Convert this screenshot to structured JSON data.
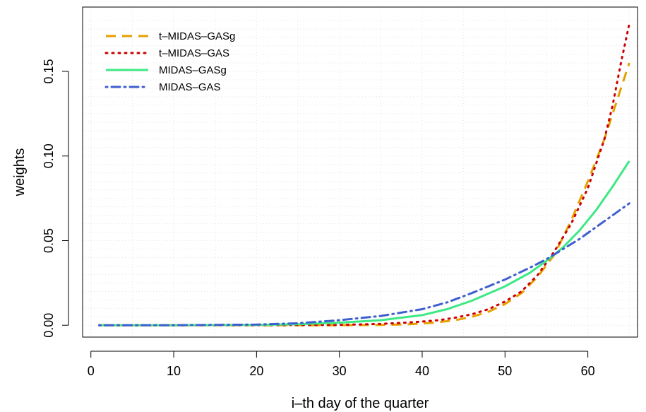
{
  "chart_data": {
    "type": "line",
    "title": "",
    "xlabel": "i–th day of the quarter",
    "ylabel": "weights",
    "xlim": [
      -1,
      66
    ],
    "ylim": [
      -0.007,
      0.188
    ],
    "xticks": [
      0,
      10,
      20,
      30,
      40,
      50,
      60
    ],
    "yticks": [
      0.0,
      0.05,
      0.1,
      0.15
    ],
    "ytick_labels": [
      "0.00",
      "0.05",
      "0.10",
      "0.15"
    ],
    "grid": true,
    "legend_position": "top-left",
    "series": [
      {
        "name": "t–MIDAS–GASg",
        "color": "#E69F00",
        "dash": "dashed",
        "points": [
          [
            1,
            0
          ],
          [
            10,
            0
          ],
          [
            20,
            0
          ],
          [
            30,
            0
          ],
          [
            35,
            0.0002
          ],
          [
            38,
            0.0005
          ],
          [
            40,
            0.001
          ],
          [
            42,
            0.0018
          ],
          [
            44,
            0.003
          ],
          [
            46,
            0.005
          ],
          [
            48,
            0.008
          ],
          [
            50,
            0.0125
          ],
          [
            52,
            0.019
          ],
          [
            54,
            0.029
          ],
          [
            56,
            0.042
          ],
          [
            58,
            0.062
          ],
          [
            60,
            0.085
          ],
          [
            62,
            0.11
          ],
          [
            64,
            0.14
          ],
          [
            65,
            0.155
          ]
        ]
      },
      {
        "name": "t–MIDAS–GAS",
        "color": "#CC0000",
        "dash": "dotted",
        "points": [
          [
            1,
            0
          ],
          [
            10,
            0
          ],
          [
            20,
            0
          ],
          [
            30,
            0.0002
          ],
          [
            35,
            0.0008
          ],
          [
            38,
            0.0015
          ],
          [
            40,
            0.0022
          ],
          [
            42,
            0.003
          ],
          [
            44,
            0.0045
          ],
          [
            46,
            0.0065
          ],
          [
            48,
            0.0095
          ],
          [
            50,
            0.014
          ],
          [
            52,
            0.02
          ],
          [
            54,
            0.03
          ],
          [
            56,
            0.044
          ],
          [
            58,
            0.06
          ],
          [
            60,
            0.081
          ],
          [
            62,
            0.11
          ],
          [
            63,
            0.13
          ],
          [
            64,
            0.155
          ],
          [
            65,
            0.178
          ]
        ]
      },
      {
        "name": "MIDAS–GASg",
        "color": "#3EE884",
        "dash": "solid",
        "points": [
          [
            1,
            0
          ],
          [
            10,
            0
          ],
          [
            20,
            0.0002
          ],
          [
            25,
            0.0006
          ],
          [
            30,
            0.0015
          ],
          [
            35,
            0.003
          ],
          [
            40,
            0.006
          ],
          [
            43,
            0.0095
          ],
          [
            46,
            0.0145
          ],
          [
            50,
            0.023
          ],
          [
            53,
            0.031
          ],
          [
            55,
            0.038
          ],
          [
            57,
            0.046
          ],
          [
            59,
            0.056
          ],
          [
            61,
            0.068
          ],
          [
            63,
            0.082
          ],
          [
            65,
            0.097
          ]
        ]
      },
      {
        "name": "MIDAS–GAS",
        "color": "#3F5FD0",
        "dash": "dotdash",
        "points": [
          [
            1,
            0
          ],
          [
            10,
            0
          ],
          [
            20,
            0.0004
          ],
          [
            25,
            0.0012
          ],
          [
            30,
            0.003
          ],
          [
            35,
            0.0055
          ],
          [
            40,
            0.0095
          ],
          [
            43,
            0.0135
          ],
          [
            46,
            0.019
          ],
          [
            50,
            0.027
          ],
          [
            53,
            0.034
          ],
          [
            55,
            0.039
          ],
          [
            57,
            0.045
          ],
          [
            59,
            0.051
          ],
          [
            61,
            0.058
          ],
          [
            63,
            0.065
          ],
          [
            65,
            0.072
          ]
        ]
      }
    ]
  }
}
